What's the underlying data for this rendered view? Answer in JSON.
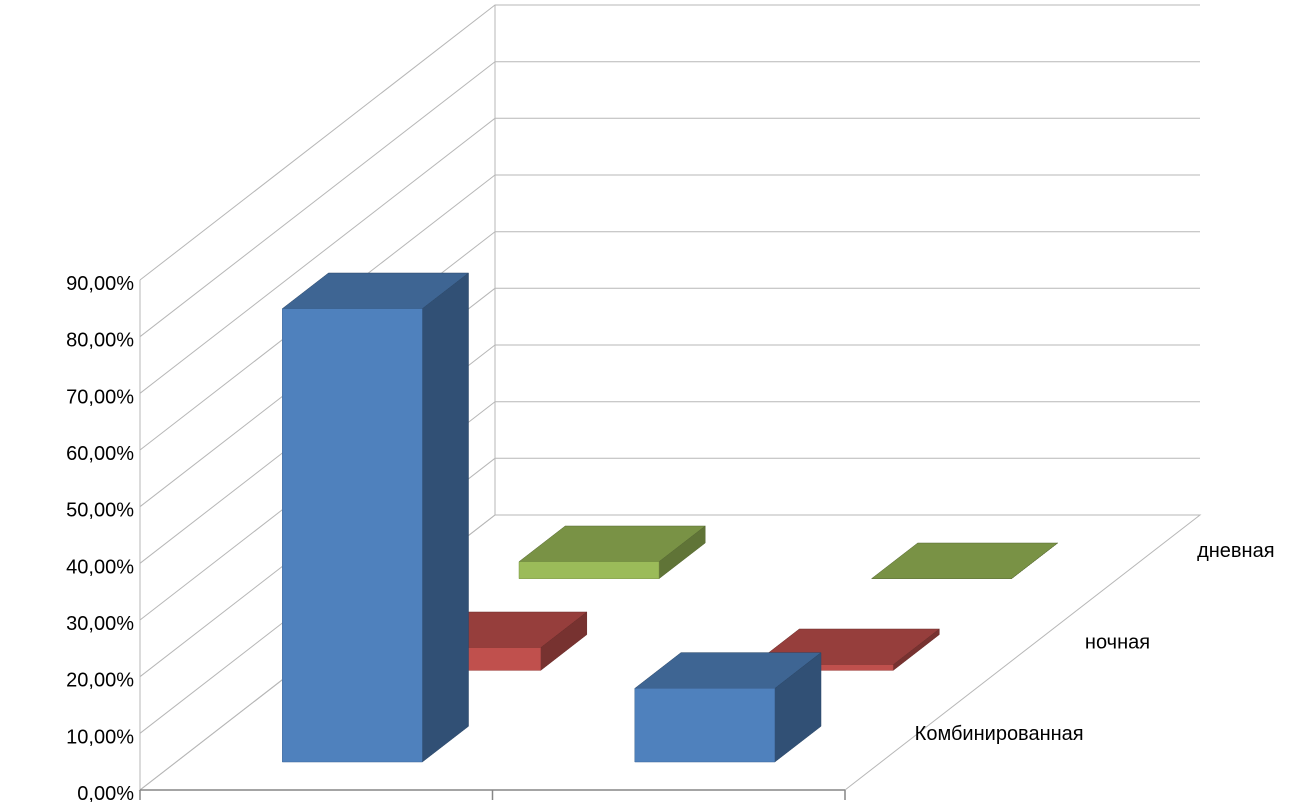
{
  "chart_data": {
    "type": "bar",
    "subtype": "3d-column",
    "categories": [
      "",
      ""
    ],
    "series": [
      {
        "name": "Комбинированная",
        "values": [
          0.8,
          0.13
        ],
        "color": "#4f81bd"
      },
      {
        "name": "ночная",
        "values": [
          0.04,
          0.01
        ],
        "color": "#c0504d"
      },
      {
        "name": "дневная",
        "values": [
          0.03,
          0.0
        ],
        "color": "#9bbb59"
      }
    ],
    "yticks": [
      "0,00%",
      "10,00%",
      "20,00%",
      "30,00%",
      "40,00%",
      "50,00%",
      "60,00%",
      "70,00%",
      "80,00%",
      "90,00%"
    ],
    "ylim": [
      0,
      0.9
    ],
    "grid": true,
    "legend": "none",
    "title": "",
    "xlabel": "",
    "ylabel": ""
  }
}
